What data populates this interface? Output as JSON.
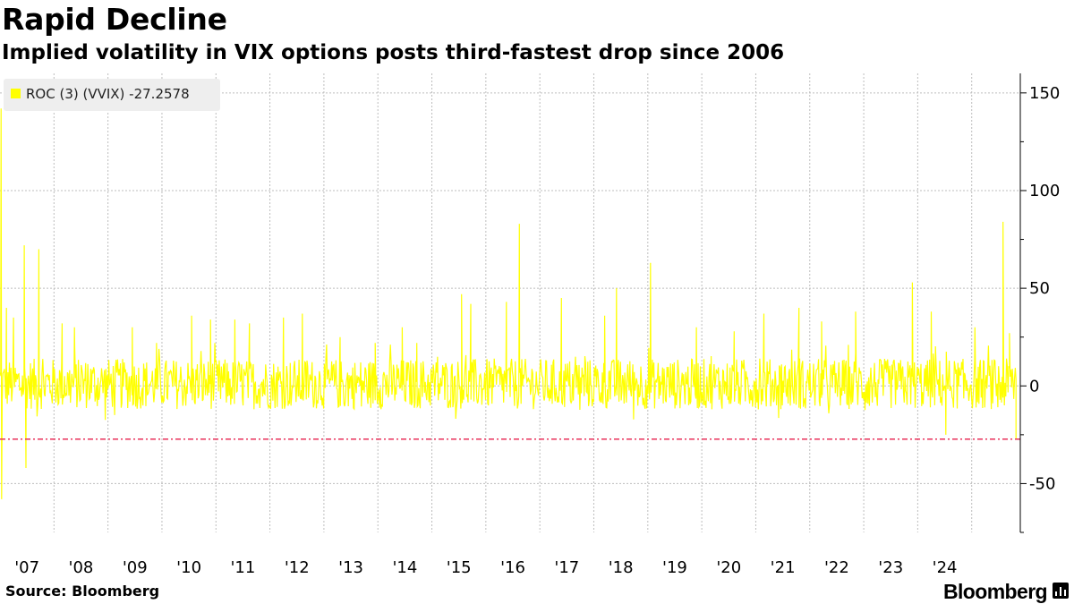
{
  "header": {
    "title": "Rapid Decline",
    "subtitle": "Implied volatility in VIX options posts third-fastest drop since 2006"
  },
  "footer": {
    "source": "Source: Bloomberg",
    "brand": "Bloomberg"
  },
  "icons": {
    "brand_icon": "bar-chart-icon"
  },
  "colors": {
    "series": "#ffff00",
    "threshold": "#e8305a",
    "grid": "#bdbdbd",
    "legend_bg": "#eeeeee"
  },
  "chart_data": {
    "type": "line",
    "title": "Rapid Decline",
    "subtitle": "Implied volatility in VIX options posts third-fastest drop since 2006",
    "xlabel": "",
    "ylabel": "",
    "x_range": [
      2006.0,
      2024.9
    ],
    "ylim": [
      -75,
      160
    ],
    "y_ticks": [
      150,
      100,
      50,
      0,
      -50
    ],
    "y_tick_labels": [
      "150",
      "100",
      "50",
      "0",
      "-50"
    ],
    "x_tick_labels": [
      "'07",
      "'08",
      "'09",
      "'10",
      "'11",
      "'12",
      "'13",
      "'14",
      "'15",
      "'16",
      "'17",
      "'18",
      "'19",
      "'20",
      "'21",
      "'22",
      "'23",
      "'24"
    ],
    "x_tick_years": [
      2007,
      2008,
      2009,
      2010,
      2011,
      2012,
      2013,
      2014,
      2015,
      2016,
      2017,
      2018,
      2019,
      2020,
      2021,
      2022,
      2023,
      2024
    ],
    "grid": true,
    "legend": {
      "position": "top-left",
      "entries": [
        "ROC (3) (VVIX) -27.2578"
      ]
    },
    "series": [
      {
        "name": "ROC (3) (VVIX)",
        "last_value": -27.2578,
        "baseline_noise": {
          "typical_low": -12,
          "typical_high": 14
        },
        "spikes": [
          {
            "x": 2006.02,
            "y": 142
          },
          {
            "x": 2006.03,
            "y": -58
          },
          {
            "x": 2006.12,
            "y": 40
          },
          {
            "x": 2006.25,
            "y": 35
          },
          {
            "x": 2006.45,
            "y": 72
          },
          {
            "x": 2006.48,
            "y": -42
          },
          {
            "x": 2006.72,
            "y": 70
          },
          {
            "x": 2007.15,
            "y": 32
          },
          {
            "x": 2007.38,
            "y": 30
          },
          {
            "x": 2008.45,
            "y": 30
          },
          {
            "x": 2008.9,
            "y": 22
          },
          {
            "x": 2009.55,
            "y": 36
          },
          {
            "x": 2009.9,
            "y": 34
          },
          {
            "x": 2010.35,
            "y": 34
          },
          {
            "x": 2010.62,
            "y": 32
          },
          {
            "x": 2011.25,
            "y": 35
          },
          {
            "x": 2011.6,
            "y": 37
          },
          {
            "x": 2012.3,
            "y": 25
          },
          {
            "x": 2012.95,
            "y": 22
          },
          {
            "x": 2013.45,
            "y": 30
          },
          {
            "x": 2013.72,
            "y": 22
          },
          {
            "x": 2014.55,
            "y": 47
          },
          {
            "x": 2014.72,
            "y": 42
          },
          {
            "x": 2015.38,
            "y": 43
          },
          {
            "x": 2015.62,
            "y": 83
          },
          {
            "x": 2016.4,
            "y": 45
          },
          {
            "x": 2017.2,
            "y": 36
          },
          {
            "x": 2017.42,
            "y": 50
          },
          {
            "x": 2018.05,
            "y": 63
          },
          {
            "x": 2018.9,
            "y": 30
          },
          {
            "x": 2019.6,
            "y": 28
          },
          {
            "x": 2020.15,
            "y": 37
          },
          {
            "x": 2020.8,
            "y": 40
          },
          {
            "x": 2021.22,
            "y": 33
          },
          {
            "x": 2021.85,
            "y": 38
          },
          {
            "x": 2022.9,
            "y": 53
          },
          {
            "x": 2023.25,
            "y": 38
          },
          {
            "x": 2023.52,
            "y": -25
          },
          {
            "x": 2024.06,
            "y": 30
          },
          {
            "x": 2024.58,
            "y": 84
          },
          {
            "x": 2024.7,
            "y": 27
          },
          {
            "x": 2024.82,
            "y": -27.2578
          }
        ]
      }
    ],
    "reference_line": {
      "value": -27.2578,
      "style": "dash-dot"
    }
  }
}
